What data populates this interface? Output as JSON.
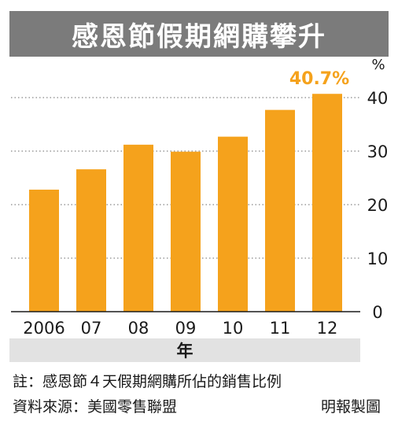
{
  "title": "感恩節假期網購攀升",
  "chart_data": {
    "type": "bar",
    "categories": [
      "2006",
      "07",
      "08",
      "09",
      "10",
      "11",
      "12"
    ],
    "values": [
      22.8,
      26.6,
      31.2,
      29.9,
      32.7,
      37.7,
      40.7
    ],
    "highlight_label": "40.7%",
    "unit": "%",
    "xlabel": "年",
    "ylim": [
      0,
      40
    ],
    "yticks": [
      0,
      10,
      20,
      30,
      40
    ],
    "grid": "dotted horizontal",
    "bar_color": "#f5a21c",
    "label_color": "#f5a21c"
  },
  "footnote": "註：感恩節４天假期網購所佔的銷售比例",
  "source": "資料來源：美國零售聯盟",
  "credit": "明報製圖"
}
